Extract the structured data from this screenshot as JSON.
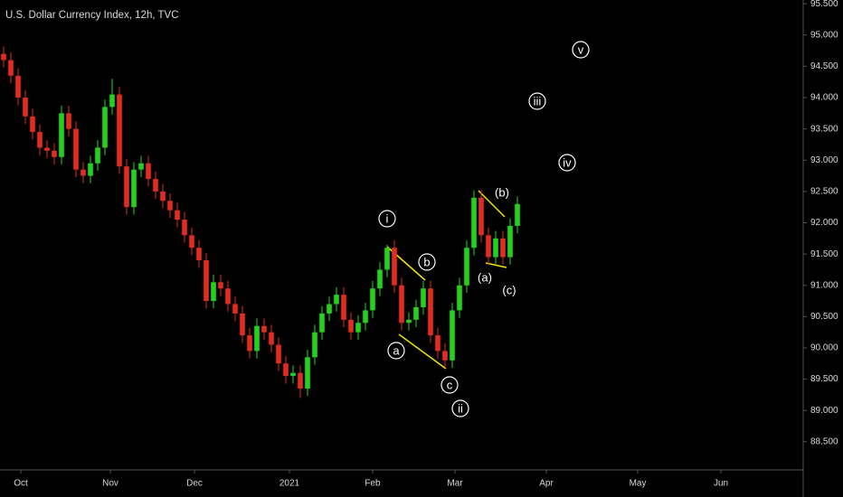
{
  "chart_data": {
    "type": "candlestick",
    "title": "U.S. Dollar Currency Index, 12h, TVC",
    "up_color": "#22d416",
    "down_color": "#e52a1f",
    "open": [
      94.7,
      94.6,
      94.35,
      94.0,
      93.7,
      93.45,
      93.2,
      93.15,
      93.05,
      93.75,
      93.5,
      92.85,
      92.75,
      92.95,
      93.2,
      93.85,
      94.05,
      92.9,
      92.25,
      92.85,
      92.95,
      92.7,
      92.5,
      92.35,
      92.2,
      92.05,
      91.8,
      91.6,
      91.4,
      90.75,
      91.05,
      90.95,
      90.7,
      90.55,
      90.2,
      89.95,
      90.35,
      90.25,
      90.05,
      89.75,
      89.55,
      89.6,
      89.35,
      89.85,
      90.25,
      90.55,
      90.7,
      90.85,
      90.45,
      90.25,
      90.4,
      90.6,
      90.95,
      91.25,
      91.6,
      91.0,
      90.4,
      90.45,
      90.65,
      90.95,
      90.2,
      89.95,
      89.8,
      90.6,
      91.0,
      91.6,
      92.4,
      91.8,
      91.45,
      91.75,
      91.45,
      91.95
    ],
    "high": [
      94.82,
      94.72,
      94.47,
      94.12,
      93.82,
      93.57,
      93.32,
      93.27,
      93.87,
      93.87,
      93.62,
      92.97,
      93.07,
      93.32,
      93.97,
      94.3,
      94.17,
      93.02,
      92.97,
      93.07,
      93.07,
      92.82,
      92.62,
      92.47,
      92.32,
      92.17,
      91.92,
      91.72,
      91.52,
      91.17,
      91.17,
      91.07,
      90.82,
      90.67,
      90.32,
      90.47,
      90.47,
      90.37,
      90.17,
      89.87,
      89.72,
      89.72,
      89.97,
      90.37,
      90.67,
      90.82,
      90.97,
      90.97,
      90.57,
      90.52,
      90.72,
      91.07,
      91.37,
      91.65,
      91.72,
      91.12,
      90.57,
      90.77,
      91.07,
      91.07,
      90.32,
      90.07,
      90.72,
      91.12,
      91.72,
      92.52,
      92.52,
      91.92,
      91.87,
      91.87,
      92.07,
      92.42
    ],
    "low": [
      94.48,
      94.23,
      93.88,
      93.58,
      93.33,
      93.08,
      93.03,
      92.93,
      92.93,
      93.38,
      92.73,
      92.63,
      92.63,
      92.83,
      93.08,
      93.73,
      92.78,
      92.13,
      92.13,
      92.73,
      92.58,
      92.38,
      92.23,
      92.08,
      91.93,
      91.68,
      91.48,
      91.28,
      90.63,
      90.63,
      90.83,
      90.58,
      90.43,
      90.08,
      89.83,
      89.83,
      90.13,
      89.93,
      89.63,
      89.43,
      89.43,
      89.2,
      89.23,
      89.73,
      90.13,
      90.43,
      90.58,
      90.33,
      90.13,
      90.13,
      90.28,
      90.48,
      90.83,
      91.13,
      90.88,
      90.28,
      90.28,
      90.33,
      90.53,
      90.08,
      89.83,
      89.68,
      89.68,
      90.48,
      90.88,
      91.48,
      91.68,
      91.33,
      91.33,
      91.33,
      91.33,
      91.83
    ],
    "close": [
      94.6,
      94.35,
      94.0,
      93.7,
      93.45,
      93.2,
      93.15,
      93.05,
      93.75,
      93.5,
      92.85,
      92.75,
      92.95,
      93.2,
      93.85,
      94.05,
      92.9,
      92.25,
      92.85,
      92.95,
      92.7,
      92.5,
      92.35,
      92.2,
      92.05,
      91.8,
      91.6,
      91.4,
      90.75,
      91.05,
      90.95,
      90.7,
      90.55,
      90.2,
      89.95,
      90.35,
      90.25,
      90.05,
      89.75,
      89.55,
      89.6,
      89.35,
      89.85,
      90.25,
      90.55,
      90.7,
      90.85,
      90.45,
      90.25,
      90.4,
      90.6,
      90.95,
      91.25,
      91.6,
      91.0,
      90.4,
      90.45,
      90.65,
      90.95,
      90.2,
      89.95,
      89.8,
      90.6,
      91.0,
      91.6,
      92.4,
      91.8,
      91.45,
      91.75,
      91.45,
      91.95,
      92.3
    ],
    "xlim": [
      -0.5,
      110.5
    ],
    "xticks": [
      {
        "value": 2.38,
        "label": "Oct"
      },
      {
        "value": 14.75,
        "label": "Nov"
      },
      {
        "value": 26.38,
        "label": "Dec"
      },
      {
        "value": 39.5,
        "label": "2021"
      },
      {
        "value": 51,
        "label": "Feb"
      },
      {
        "value": 62.38,
        "label": "Mar"
      },
      {
        "value": 75,
        "label": "Apr"
      },
      {
        "value": 87.63,
        "label": "May"
      },
      {
        "value": 99.13,
        "label": "Jun"
      }
    ],
    "ylim": [
      88.05,
      95.56
    ],
    "yticks": [
      {
        "value": 88.5,
        "label": "88.500"
      },
      {
        "value": 89,
        "label": "89.000"
      },
      {
        "value": 89.5,
        "label": "89.500"
      },
      {
        "value": 90,
        "label": "90.000"
      },
      {
        "value": 90.5,
        "label": "90.500"
      },
      {
        "value": 91,
        "label": "91.000"
      },
      {
        "value": 91.5,
        "label": "91.500"
      },
      {
        "value": 92,
        "label": "92.000"
      },
      {
        "value": 92.5,
        "label": "92.500"
      },
      {
        "value": 93,
        "label": "93.000"
      },
      {
        "value": 93.5,
        "label": "93.500"
      },
      {
        "value": 94,
        "label": "94.000"
      },
      {
        "value": 94.5,
        "label": "94.500"
      },
      {
        "value": 95,
        "label": "95.000"
      },
      {
        "value": 95.5,
        "label": "95.500"
      }
    ],
    "annotations": [
      "i",
      "ii",
      "iii",
      "iv",
      "v",
      "a",
      "b",
      "c",
      "(a)",
      "(b)",
      "(c)"
    ]
  }
}
